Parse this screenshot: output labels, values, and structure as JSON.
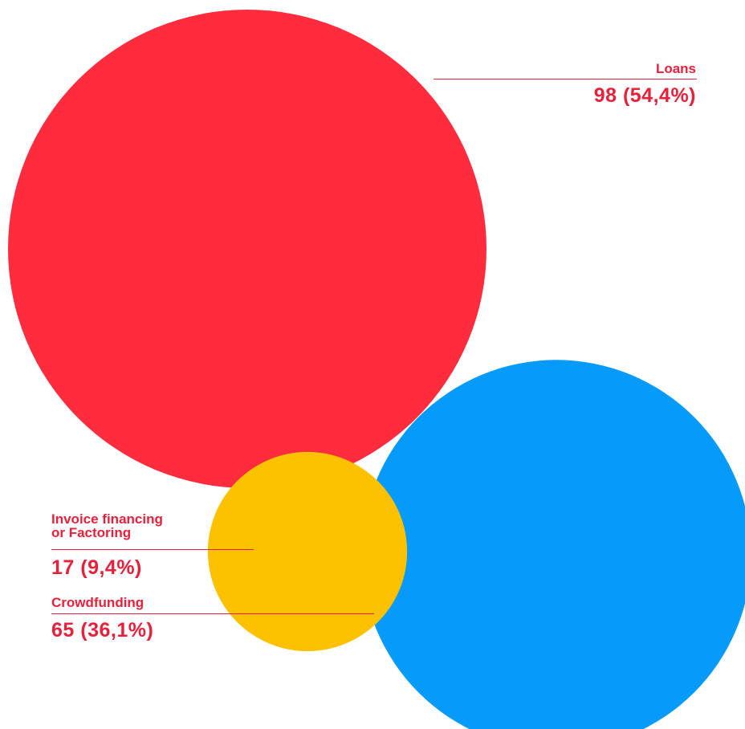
{
  "chart_data": {
    "type": "bubble",
    "series": [
      {
        "name": "Loans",
        "value": 98,
        "percent": "54,4%",
        "value_label": "98 (54,4%)",
        "color": "#fe2c3c"
      },
      {
        "name": "Crowdfunding",
        "value": 65,
        "percent": "36,1%",
        "value_label": "65 (36,1%)",
        "color": "#069bfa"
      },
      {
        "name": "Invoice financing\nor Factoring",
        "value": 17,
        "percent": "9,4%",
        "value_label": "17 (9,4%)",
        "color": "#fdc100"
      }
    ]
  },
  "labels": {
    "loans": {
      "name": "Loans",
      "value": "98 (54,4%)"
    },
    "invoice": {
      "name": "Invoice financing\nor Factoring",
      "value": "17 (9,4%)"
    },
    "crowdfunding": {
      "name": "Crowdfunding",
      "value": "65 (36,1%)"
    }
  },
  "colors": {
    "label_text": "#e8203a",
    "background": "#ffffff"
  }
}
